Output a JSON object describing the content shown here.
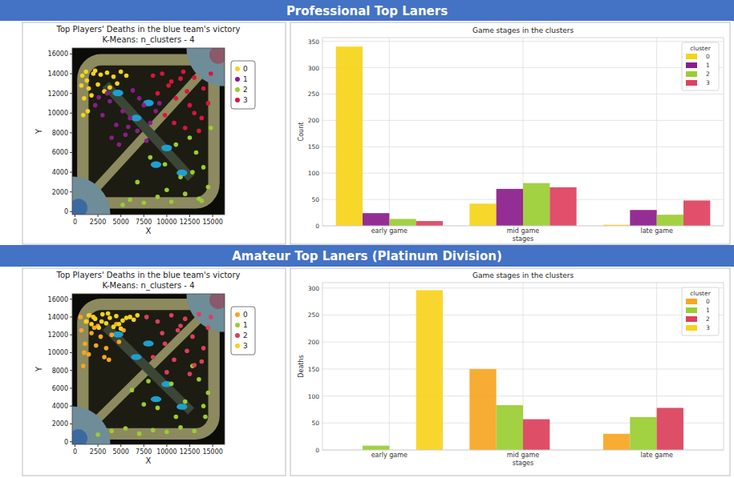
{
  "headings": [
    "Professional Top Laners",
    "Amateur Top Laners (Platinum Division)"
  ],
  "chart_data": [
    {
      "type": "scatter",
      "title": "Top Players' Deaths in the blue team's victory",
      "subtitle": "K-Means: n_clusters - 4",
      "x_label": "X",
      "y_label": "Y",
      "xlim": [
        -300,
        16300
      ],
      "ylim": [
        -300,
        16600
      ],
      "xticks": [
        0,
        2500,
        5000,
        7500,
        10000,
        12500,
        15000
      ],
      "yticks": [
        0,
        2000,
        4000,
        6000,
        8000,
        10000,
        12000,
        14000,
        16000
      ],
      "grid": false,
      "legend": "right",
      "series": [
        {
          "name": "0",
          "color": "#f5d418",
          "x": [
            800,
            1200,
            1500,
            2200,
            2800,
            3500,
            4200,
            5000,
            5600,
            1000,
            1400,
            700,
            1800,
            2500,
            3200,
            900,
            1300,
            4600,
            2000,
            3800
          ],
          "values": [
            13800,
            14200,
            12500,
            14300,
            13900,
            14100,
            13700,
            14200,
            13800,
            11500,
            10200,
            12800,
            11800,
            12900,
            12200,
            9800,
            13300,
            13000,
            14000,
            12600
          ]
        },
        {
          "name": "1",
          "color": "#8b1c8b",
          "x": [
            2200,
            3000,
            3800,
            4500,
            5200,
            6000,
            6800,
            7500,
            8200,
            4000,
            5500,
            7000,
            3500,
            6300,
            8800,
            2600,
            4800,
            7800,
            5800,
            9200
          ],
          "values": [
            10800,
            9800,
            11200,
            8800,
            10200,
            9500,
            8200,
            10800,
            9000,
            7500,
            7800,
            11500,
            12000,
            12300,
            10200,
            11600,
            6800,
            7200,
            8600,
            11000
          ]
        },
        {
          "name": "2",
          "color": "#9acd32",
          "x": [
            6000,
            7500,
            9000,
            10500,
            12000,
            13500,
            14500,
            14000,
            13200,
            11500,
            9800,
            8200,
            6800,
            12500,
            14800,
            11000,
            10000,
            13800,
            5200,
            12800
          ],
          "values": [
            1200,
            900,
            1500,
            1000,
            1800,
            1300,
            2500,
            4500,
            6000,
            3500,
            4800,
            5500,
            3000,
            7500,
            8500,
            6800,
            2200,
            1100,
            700,
            4000
          ]
        },
        {
          "name": "3",
          "color": "#dc143c",
          "x": [
            8500,
            9500,
            10500,
            11800,
            13000,
            14000,
            14500,
            13800,
            12500,
            11000,
            9800,
            12000,
            13500,
            10200,
            14800,
            11500,
            9000,
            13000,
            12200,
            10800
          ],
          "values": [
            13800,
            14000,
            13200,
            14200,
            13600,
            12500,
            11000,
            9500,
            10800,
            11500,
            9800,
            8500,
            8200,
            12800,
            14000,
            13500,
            12000,
            10000,
            12200,
            9000
          ]
        }
      ]
    },
    {
      "type": "bar",
      "title": "Game stages in the clusters",
      "x_label": "stages",
      "y_label": "Count",
      "categories": [
        "early game",
        "mid game",
        "late game"
      ],
      "ylim": [
        0,
        357
      ],
      "yticks": [
        0,
        50,
        100,
        150,
        200,
        250,
        300,
        350
      ],
      "grid": true,
      "legend": "upper right",
      "legend_title": "cluster",
      "series": [
        {
          "name": "0",
          "color": "#f5d418",
          "values": [
            340,
            42,
            2
          ]
        },
        {
          "name": "1",
          "color": "#8b1c8b",
          "values": [
            24,
            70,
            30
          ]
        },
        {
          "name": "2",
          "color": "#9acd32",
          "values": [
            13,
            81,
            21
          ]
        },
        {
          "name": "3",
          "color": "#e0405e",
          "values": [
            9,
            73,
            48
          ]
        }
      ]
    },
    {
      "type": "scatter",
      "title": "Top Players' Deaths in the blue team's victory",
      "subtitle": "K-Means: n_clusters - 4",
      "x_label": "X",
      "y_label": "Y",
      "xlim": [
        -300,
        16300
      ],
      "ylim": [
        -300,
        16600
      ],
      "xticks": [
        0,
        2500,
        5000,
        7500,
        10000,
        12500,
        15000
      ],
      "yticks": [
        0,
        2000,
        4000,
        6000,
        8000,
        10000,
        12000,
        14000,
        16000
      ],
      "grid": false,
      "legend": "right",
      "series": [
        {
          "name": "0",
          "color": "#f6a623",
          "x": [
            700,
            1100,
            1500,
            900,
            1300,
            1800,
            2300,
            2800,
            3400,
            4000,
            4800,
            5300,
            600,
            1600,
            2500,
            3200,
            1000,
            2100,
            3700,
            4500
          ],
          "values": [
            12500,
            11000,
            9800,
            8500,
            13500,
            12200,
            10800,
            11800,
            10500,
            12000,
            11200,
            12500,
            14000,
            14200,
            13000,
            9500,
            10000,
            12800,
            9200,
            13200
          ]
        },
        {
          "name": "1",
          "color": "#9acd32",
          "x": [
            2500,
            4000,
            5500,
            7000,
            8500,
            10000,
            11500,
            13000,
            14200,
            14500,
            13500,
            12000,
            10500,
            9000,
            7500,
            6200,
            11000,
            12800,
            14000,
            8000
          ],
          "values": [
            800,
            1200,
            1500,
            900,
            1300,
            1100,
            1600,
            1200,
            2800,
            5500,
            7000,
            4500,
            6500,
            3800,
            4200,
            5800,
            2800,
            8500,
            4000,
            6800
          ]
        },
        {
          "name": "2",
          "color": "#dc3f5a",
          "x": [
            7800,
            9000,
            10500,
            12000,
            13500,
            14500,
            14000,
            12800,
            11200,
            9800,
            8500,
            10800,
            13000,
            12200,
            14800,
            9500,
            11500,
            13800,
            10000,
            12500
          ],
          "values": [
            14000,
            13500,
            14200,
            13800,
            14300,
            12800,
            10500,
            11800,
            12500,
            11000,
            9500,
            9200,
            8600,
            10200,
            14000,
            12200,
            13000,
            9000,
            7800,
            7600
          ]
        },
        {
          "name": "3",
          "color": "#f8d21c",
          "x": [
            1500,
            2200,
            3000,
            3800,
            4500,
            5200,
            6000,
            6800,
            1800,
            2600,
            3400,
            4200,
            5000,
            2000,
            2900,
            3600,
            1200,
            4800,
            5600,
            6400
          ],
          "values": [
            14200,
            13800,
            14300,
            13900,
            14100,
            13600,
            14000,
            14200,
            13200,
            12800,
            13300,
            12900,
            12700,
            14000,
            13500,
            14400,
            13500,
            13200,
            13900,
            13700
          ]
        }
      ]
    },
    {
      "type": "bar",
      "title": "Game stages in the clusters",
      "x_label": "stages",
      "y_label": "Deaths",
      "categories": [
        "early game",
        "mid game",
        "late game"
      ],
      "ylim": [
        0,
        310
      ],
      "yticks": [
        0,
        50,
        100,
        150,
        200,
        250,
        300
      ],
      "grid": true,
      "legend": "upper right",
      "legend_title": "cluster",
      "series": [
        {
          "name": "0",
          "color": "#f6a623",
          "values": [
            0,
            150,
            30
          ]
        },
        {
          "name": "1",
          "color": "#9acd32",
          "values": [
            8,
            83,
            61
          ]
        },
        {
          "name": "2",
          "color": "#dc3f5a",
          "values": [
            0,
            57,
            78
          ]
        },
        {
          "name": "3",
          "color": "#f8d21c",
          "values": [
            296,
            0,
            0
          ]
        }
      ]
    }
  ]
}
